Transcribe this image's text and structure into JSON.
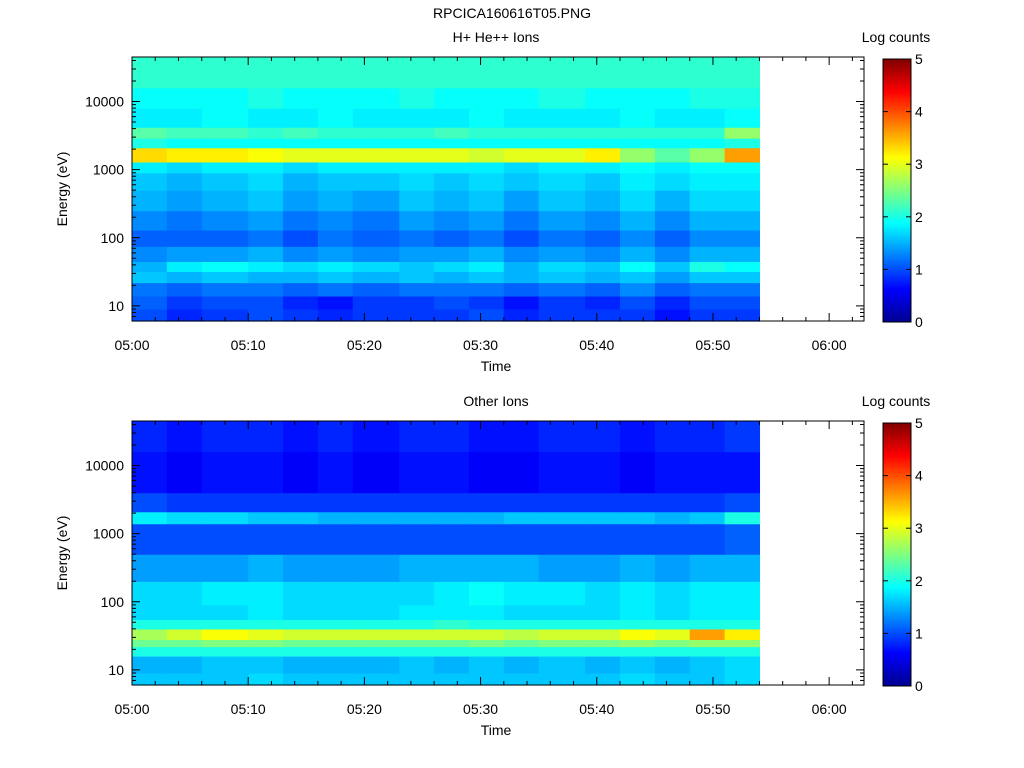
{
  "figure_title": "RPCICA160616T05.PNG",
  "chart_data": [
    {
      "type": "heatmap",
      "title": "H+ He++ Ions",
      "xlabel": "Time",
      "ylabel": "Energy (eV)",
      "x_tick_labels": [
        "05:00",
        "05:10",
        "05:20",
        "05:30",
        "05:40",
        "05:50",
        "06:00"
      ],
      "xlim": [
        "05:00",
        "06:03"
      ],
      "data_end": "05:54",
      "y_scale": "log",
      "ylim": [
        6,
        45000
      ],
      "y_tick_labels": [
        "10",
        "100",
        "1000",
        "10000"
      ],
      "colorbar_label": "Log counts",
      "colorbar_range": [
        0,
        5
      ],
      "colorbar_tick_labels": [
        "0",
        "1",
        "2",
        "3",
        "4",
        "5"
      ],
      "colormap": "jet",
      "time_columns": [
        "05:00",
        "05:03",
        "05:06",
        "05:10",
        "05:13",
        "05:16",
        "05:19",
        "05:23",
        "05:26",
        "05:29",
        "05:32",
        "05:35",
        "05:39",
        "05:42",
        "05:45",
        "05:48",
        "05:51"
      ],
      "energy_bands": [
        {
          "energy_range_eV": [
            6,
            9
          ],
          "log_counts": [
            1.0,
            0.8,
            0.9,
            1.0,
            0.9,
            0.8,
            0.9,
            0.9,
            0.9,
            1.0,
            0.8,
            0.9,
            0.9,
            0.9,
            0.7,
            0.9,
            0.9
          ]
        },
        {
          "energy_range_eV": [
            9,
            14
          ],
          "log_counts": [
            1.1,
            0.9,
            1.0,
            1.0,
            0.8,
            0.7,
            0.9,
            0.9,
            1.0,
            0.9,
            0.7,
            0.9,
            0.8,
            1.0,
            0.8,
            1.0,
            1.0
          ]
        },
        {
          "energy_range_eV": [
            14,
            22
          ],
          "log_counts": [
            1.2,
            1.1,
            1.2,
            1.2,
            1.1,
            1.2,
            1.1,
            1.2,
            1.2,
            1.2,
            1.1,
            1.2,
            1.1,
            1.3,
            1.1,
            1.2,
            1.2
          ]
        },
        {
          "energy_range_eV": [
            22,
            32
          ],
          "log_counts": [
            1.6,
            1.5,
            1.6,
            1.5,
            1.5,
            1.6,
            1.5,
            1.6,
            1.5,
            1.6,
            1.5,
            1.6,
            1.5,
            1.6,
            1.4,
            1.6,
            1.6
          ]
        },
        {
          "energy_range_eV": [
            32,
            45
          ],
          "log_counts": [
            1.5,
            1.8,
            1.9,
            1.8,
            1.7,
            1.8,
            1.7,
            1.6,
            1.7,
            1.8,
            1.5,
            1.7,
            1.6,
            1.9,
            1.6,
            2.0,
            1.9
          ]
        },
        {
          "energy_range_eV": [
            45,
            75
          ],
          "log_counts": [
            1.3,
            1.4,
            1.4,
            1.5,
            1.3,
            1.4,
            1.3,
            1.4,
            1.4,
            1.5,
            1.3,
            1.4,
            1.3,
            1.5,
            1.3,
            1.5,
            1.5
          ]
        },
        {
          "energy_range_eV": [
            75,
            130
          ],
          "log_counts": [
            1.1,
            1.1,
            1.1,
            1.2,
            1.0,
            1.2,
            1.1,
            1.2,
            1.1,
            1.2,
            1.0,
            1.2,
            1.1,
            1.3,
            1.1,
            1.3,
            1.3
          ]
        },
        {
          "energy_range_eV": [
            130,
            250
          ],
          "log_counts": [
            1.3,
            1.2,
            1.3,
            1.4,
            1.2,
            1.3,
            1.2,
            1.4,
            1.3,
            1.4,
            1.2,
            1.4,
            1.3,
            1.5,
            1.3,
            1.5,
            1.5
          ]
        },
        {
          "energy_range_eV": [
            250,
            500
          ],
          "log_counts": [
            1.5,
            1.4,
            1.5,
            1.6,
            1.4,
            1.5,
            1.4,
            1.6,
            1.5,
            1.6,
            1.4,
            1.6,
            1.5,
            1.7,
            1.5,
            1.7,
            1.7
          ]
        },
        {
          "energy_range_eV": [
            500,
            900
          ],
          "log_counts": [
            1.6,
            1.5,
            1.6,
            1.7,
            1.5,
            1.6,
            1.6,
            1.7,
            1.6,
            1.7,
            1.6,
            1.7,
            1.6,
            1.8,
            1.7,
            1.8,
            1.8
          ]
        },
        {
          "energy_range_eV": [
            900,
            1300
          ],
          "log_counts": [
            1.8,
            1.7,
            1.8,
            1.8,
            1.7,
            1.8,
            1.8,
            1.8,
            1.8,
            1.8,
            1.7,
            1.8,
            1.8,
            1.9,
            1.8,
            1.9,
            1.9
          ]
        },
        {
          "energy_range_eV": [
            1300,
            2100
          ],
          "log_counts": [
            3.3,
            3.2,
            3.2,
            3.1,
            3.0,
            3.0,
            3.0,
            3.0,
            3.0,
            2.9,
            3.0,
            3.0,
            3.2,
            2.6,
            2.3,
            2.6,
            3.6
          ]
        },
        {
          "energy_range_eV": [
            2100,
            2900
          ],
          "log_counts": [
            2.0,
            1.9,
            1.9,
            1.9,
            1.9,
            1.9,
            1.9,
            1.9,
            1.9,
            1.9,
            1.9,
            1.9,
            1.9,
            1.9,
            1.9,
            1.9,
            2.0
          ]
        },
        {
          "energy_range_eV": [
            2900,
            4200
          ],
          "log_counts": [
            2.3,
            2.2,
            2.2,
            2.1,
            2.2,
            2.1,
            2.1,
            2.1,
            2.2,
            2.1,
            2.1,
            2.1,
            2.1,
            2.1,
            2.1,
            2.1,
            2.6
          ]
        },
        {
          "energy_range_eV": [
            4200,
            8000
          ],
          "log_counts": [
            1.8,
            1.8,
            1.9,
            1.8,
            1.8,
            1.9,
            1.8,
            1.8,
            1.8,
            1.9,
            1.8,
            1.8,
            1.8,
            1.9,
            1.8,
            1.8,
            1.9
          ]
        },
        {
          "energy_range_eV": [
            8000,
            16000
          ],
          "log_counts": [
            1.9,
            1.9,
            1.9,
            2.0,
            1.9,
            1.9,
            1.9,
            2.0,
            1.9,
            1.9,
            1.9,
            2.0,
            1.9,
            1.9,
            1.9,
            2.0,
            2.0
          ]
        },
        {
          "energy_range_eV": [
            16000,
            45000
          ],
          "log_counts": [
            2.1,
            2.1,
            2.1,
            2.1,
            2.1,
            2.1,
            2.1,
            2.1,
            2.1,
            2.1,
            2.1,
            2.1,
            2.1,
            2.1,
            2.1,
            2.1,
            2.1
          ]
        }
      ]
    },
    {
      "type": "heatmap",
      "title": "Other Ions",
      "xlabel": "Time",
      "ylabel": "Energy (eV)",
      "x_tick_labels": [
        "05:00",
        "05:10",
        "05:20",
        "05:30",
        "05:40",
        "05:50",
        "06:00"
      ],
      "xlim": [
        "05:00",
        "06:03"
      ],
      "data_end": "05:54",
      "y_scale": "log",
      "ylim": [
        6,
        45000
      ],
      "y_tick_labels": [
        "10",
        "100",
        "1000",
        "10000"
      ],
      "colorbar_label": "Log counts",
      "colorbar_range": [
        0,
        5
      ],
      "colorbar_tick_labels": [
        "0",
        "1",
        "2",
        "3",
        "4",
        "5"
      ],
      "colormap": "jet",
      "time_columns": [
        "05:00",
        "05:03",
        "05:06",
        "05:10",
        "05:13",
        "05:16",
        "05:19",
        "05:23",
        "05:26",
        "05:29",
        "05:32",
        "05:35",
        "05:39",
        "05:42",
        "05:45",
        "05:48",
        "05:51"
      ],
      "energy_bands": [
        {
          "energy_range_eV": [
            6,
            9
          ],
          "log_counts": [
            1.6,
            1.6,
            1.6,
            1.7,
            1.6,
            1.6,
            1.6,
            1.6,
            1.6,
            1.6,
            1.6,
            1.6,
            1.6,
            1.7,
            1.6,
            1.6,
            1.7
          ]
        },
        {
          "energy_range_eV": [
            9,
            16
          ],
          "log_counts": [
            1.5,
            1.5,
            1.6,
            1.6,
            1.5,
            1.5,
            1.5,
            1.6,
            1.5,
            1.6,
            1.5,
            1.6,
            1.5,
            1.6,
            1.5,
            1.6,
            1.7
          ]
        },
        {
          "energy_range_eV": [
            16,
            22
          ],
          "log_counts": [
            2.0,
            2.0,
            2.0,
            2.0,
            2.0,
            2.0,
            2.0,
            2.0,
            2.0,
            2.0,
            2.0,
            2.0,
            2.0,
            2.0,
            2.0,
            2.0,
            2.0
          ]
        },
        {
          "energy_range_eV": [
            22,
            28
          ],
          "log_counts": [
            2.4,
            2.4,
            2.5,
            2.5,
            2.4,
            2.4,
            2.4,
            2.4,
            2.4,
            2.5,
            2.4,
            2.5,
            2.5,
            2.6,
            2.5,
            2.6,
            2.6
          ]
        },
        {
          "energy_range_eV": [
            28,
            40
          ],
          "log_counts": [
            2.7,
            2.9,
            3.1,
            3.0,
            2.9,
            2.9,
            2.9,
            2.9,
            2.9,
            2.9,
            2.8,
            2.9,
            2.9,
            3.1,
            3.0,
            3.6,
            3.2
          ]
        },
        {
          "energy_range_eV": [
            40,
            55
          ],
          "log_counts": [
            2.0,
            2.0,
            2.0,
            2.0,
            2.0,
            2.0,
            2.0,
            2.0,
            2.1,
            2.0,
            2.0,
            2.0,
            2.0,
            2.0,
            2.0,
            2.0,
            2.0
          ]
        },
        {
          "energy_range_eV": [
            55,
            90
          ],
          "log_counts": [
            1.7,
            1.7,
            1.7,
            1.8,
            1.7,
            1.7,
            1.7,
            1.8,
            1.8,
            1.8,
            1.7,
            1.7,
            1.7,
            1.8,
            1.7,
            1.8,
            1.8
          ]
        },
        {
          "energy_range_eV": [
            90,
            200
          ],
          "log_counts": [
            1.7,
            1.7,
            1.8,
            1.8,
            1.7,
            1.7,
            1.7,
            1.7,
            1.8,
            1.9,
            1.8,
            1.8,
            1.7,
            1.8,
            1.7,
            1.8,
            1.8
          ]
        },
        {
          "energy_range_eV": [
            200,
            500
          ],
          "log_counts": [
            1.4,
            1.4,
            1.4,
            1.5,
            1.4,
            1.4,
            1.4,
            1.5,
            1.5,
            1.5,
            1.5,
            1.4,
            1.4,
            1.5,
            1.4,
            1.5,
            1.5
          ]
        },
        {
          "energy_range_eV": [
            500,
            1400
          ],
          "log_counts": [
            1.0,
            1.0,
            1.0,
            1.0,
            1.0,
            1.0,
            1.0,
            1.0,
            1.0,
            1.0,
            1.0,
            1.0,
            1.0,
            1.0,
            1.0,
            1.0,
            1.1
          ]
        },
        {
          "energy_range_eV": [
            1400,
            2100
          ],
          "log_counts": [
            1.8,
            1.7,
            1.7,
            1.6,
            1.6,
            1.5,
            1.5,
            1.5,
            1.5,
            1.5,
            1.6,
            1.6,
            1.6,
            1.6,
            1.5,
            1.6,
            2.0
          ]
        },
        {
          "energy_range_eV": [
            2100,
            4000
          ],
          "log_counts": [
            1.0,
            0.9,
            0.9,
            0.9,
            0.9,
            0.9,
            0.9,
            0.9,
            0.9,
            0.9,
            0.9,
            0.9,
            0.9,
            0.9,
            0.9,
            0.9,
            1.0
          ]
        },
        {
          "energy_range_eV": [
            4000,
            16000
          ],
          "log_counts": [
            0.7,
            0.6,
            0.7,
            0.7,
            0.6,
            0.7,
            0.6,
            0.7,
            0.7,
            0.6,
            0.6,
            0.7,
            0.7,
            0.6,
            0.7,
            0.7,
            0.7
          ]
        },
        {
          "energy_range_eV": [
            16000,
            45000
          ],
          "log_counts": [
            0.8,
            0.7,
            0.8,
            0.8,
            0.7,
            0.8,
            0.7,
            0.8,
            0.8,
            0.7,
            0.7,
            0.8,
            0.8,
            0.7,
            0.8,
            0.8,
            0.9
          ]
        }
      ]
    }
  ]
}
